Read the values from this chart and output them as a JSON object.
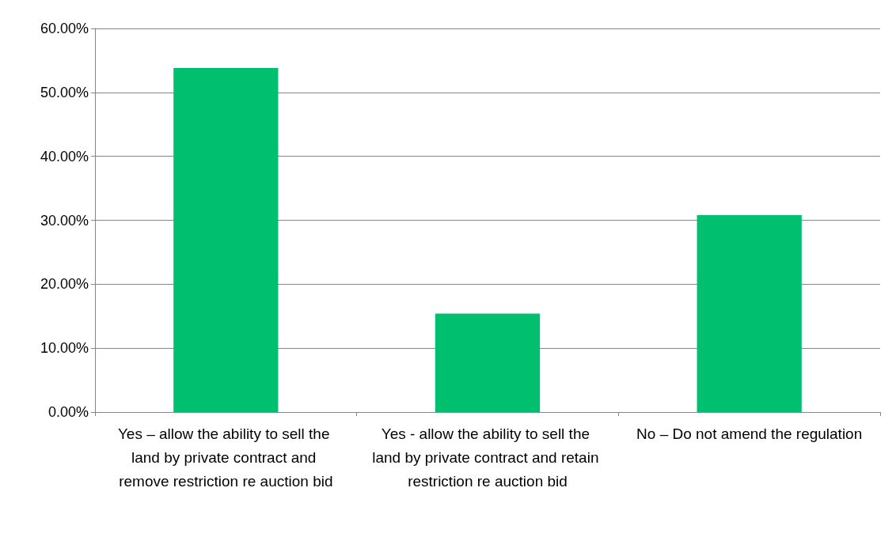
{
  "chart_data": {
    "type": "bar",
    "categories": [
      "Yes – allow the ability to sell the land by private contract and remove restriction re auction bid",
      "Yes - allow the ability to sell the land by private contract and retain restriction re auction bid",
      "No – Do not amend the regulation"
    ],
    "values": [
      53.8,
      15.4,
      30.8
    ],
    "color": "#00bf6f",
    "ylim": [
      0,
      60
    ],
    "yticks": [
      {
        "value": 0,
        "label": "0.00%"
      },
      {
        "value": 10,
        "label": "10.00%"
      },
      {
        "value": 20,
        "label": "20.00%"
      },
      {
        "value": 30,
        "label": "30.00%"
      },
      {
        "value": 40,
        "label": "40.00%"
      },
      {
        "value": 50,
        "label": "50.00%"
      },
      {
        "value": 60,
        "label": "60.00%"
      }
    ],
    "grid": "y"
  }
}
